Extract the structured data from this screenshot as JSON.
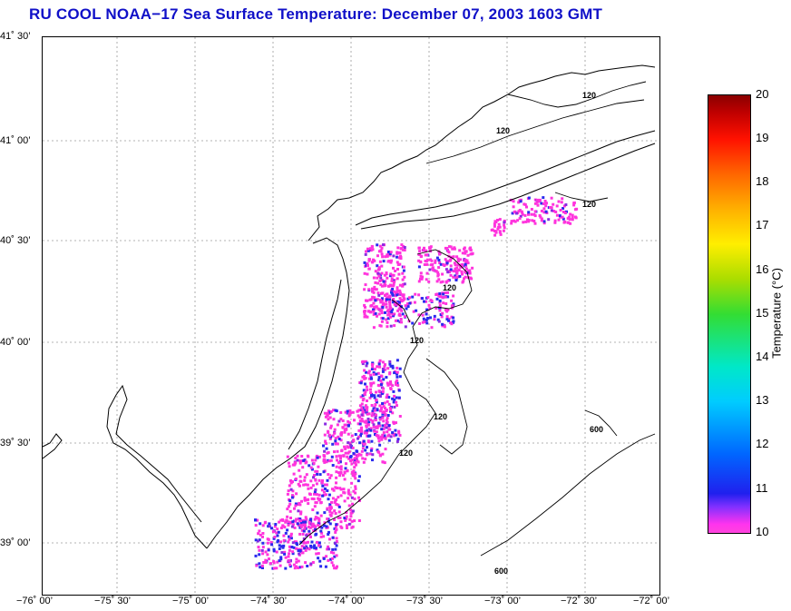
{
  "title": "RU COOL  NOAA−17  Sea Surface Temperature:  December 07, 2003 1603 GMT",
  "map": {
    "lat_ticks": [
      "41˚ 30’",
      "41˚ 00’",
      "40˚ 30’",
      "40˚ 00’",
      "39˚ 30’",
      "39˚ 00’"
    ],
    "lon_ticks": [
      "−76˚ 00’",
      "−75˚ 30’",
      "−75˚ 00’",
      "−74˚ 30’",
      "−74˚ 00’",
      "−73˚ 30’",
      "−73˚ 00’",
      "−72˚ 30’",
      "−72˚ 00’"
    ],
    "contour_labels": [
      "120",
      "120",
      "120",
      "120",
      "120",
      "120",
      "120",
      "600",
      "600"
    ],
    "colors": {
      "coast": "#000000",
      "grid": "#9a9a9a",
      "sst_low": "#ff33dd",
      "sst_mid": "#2a2aee",
      "sst_violet": "#8a2be2"
    }
  },
  "colorbar": {
    "ticks": [
      "20",
      "19",
      "18",
      "17",
      "16",
      "15",
      "14",
      "13",
      "12",
      "11",
      "10"
    ],
    "label": "Temperature (°C)",
    "min": 10,
    "max": 20
  }
}
